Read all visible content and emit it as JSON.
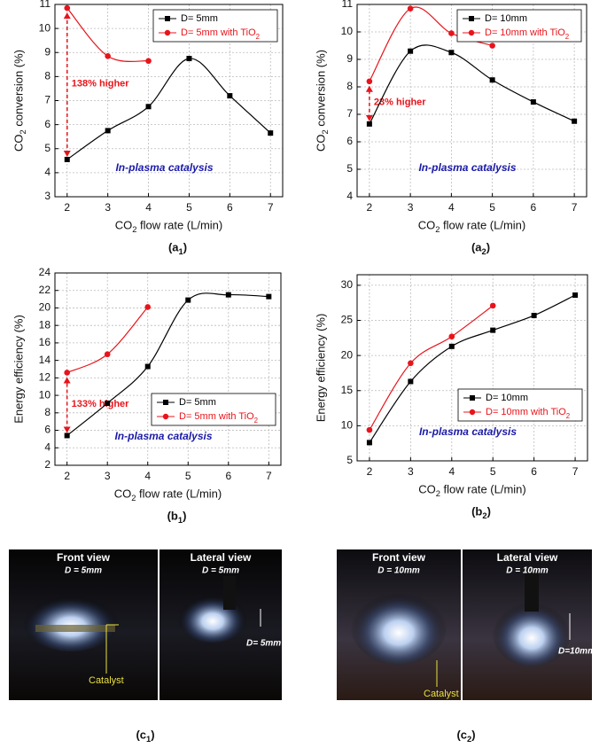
{
  "chart_data": [
    {
      "type": "line",
      "panel": "(a1)",
      "xlabel": "CO2 flow rate (L/min)",
      "ylabel": "CO2 conversion (%)",
      "xlim": [
        1.7,
        7.3
      ],
      "xticks": [
        2,
        3,
        4,
        5,
        6,
        7
      ],
      "ylim": [
        3,
        11
      ],
      "yticks": [
        3,
        4,
        5,
        6,
        7,
        8,
        9,
        10,
        11
      ],
      "grid": true,
      "legend": "upper right",
      "annotations": [
        "138% higher",
        "In-plasma catalysis"
      ],
      "series": [
        {
          "name": "D= 5mm",
          "color": "#000000",
          "marker": "square",
          "x": [
            2,
            3,
            4,
            5,
            6,
            7
          ],
          "values": [
            4.55,
            5.75,
            6.75,
            8.75,
            7.2,
            5.65
          ]
        },
        {
          "name": "D= 5mm with TiO2",
          "color": "#e8141b",
          "marker": "circle",
          "x": [
            2,
            3,
            4
          ],
          "values": [
            10.85,
            8.85,
            8.65
          ]
        }
      ]
    },
    {
      "type": "line",
      "panel": "(a2)",
      "xlabel": "CO2 flow rate (L/min)",
      "ylabel": "CO2 conversion (%)",
      "xlim": [
        1.7,
        7.3
      ],
      "xticks": [
        2,
        3,
        4,
        5,
        6,
        7
      ],
      "ylim": [
        4,
        11
      ],
      "yticks": [
        4,
        5,
        6,
        7,
        8,
        9,
        10,
        11
      ],
      "grid": true,
      "legend": "upper right",
      "annotations": [
        "23% higher",
        "In-plasma catalysis"
      ],
      "series": [
        {
          "name": "D= 10mm",
          "color": "#000000",
          "marker": "square",
          "x": [
            2,
            3,
            4,
            5,
            6,
            7
          ],
          "values": [
            6.65,
            9.3,
            9.25,
            8.25,
            7.45,
            6.75
          ]
        },
        {
          "name": "D= 10mm with TiO2",
          "color": "#e8141b",
          "marker": "circle",
          "x": [
            2,
            3,
            4,
            5
          ],
          "values": [
            8.2,
            10.85,
            9.95,
            9.5
          ]
        }
      ]
    },
    {
      "type": "line",
      "panel": "(b1)",
      "xlabel": "CO2 flow rate (L/min)",
      "ylabel": "Energy efficiency (%)",
      "xlim": [
        1.7,
        7.3
      ],
      "xticks": [
        2,
        3,
        4,
        5,
        6,
        7
      ],
      "ylim": [
        2,
        24
      ],
      "yticks": [
        2,
        4,
        6,
        8,
        10,
        12,
        14,
        16,
        18,
        20,
        22,
        24
      ],
      "grid": true,
      "legend": "lower right",
      "annotations": [
        "133% higher",
        "In-plasma catalysis"
      ],
      "series": [
        {
          "name": "D= 5mm",
          "color": "#000000",
          "marker": "square",
          "x": [
            2,
            3,
            4,
            5,
            6,
            7
          ],
          "values": [
            5.4,
            9.1,
            13.3,
            20.9,
            21.5,
            21.3
          ]
        },
        {
          "name": "D= 5mm with TiO2",
          "color": "#e8141b",
          "marker": "circle",
          "x": [
            2,
            3,
            4
          ],
          "values": [
            12.6,
            14.7,
            20.1
          ]
        }
      ]
    },
    {
      "type": "line",
      "panel": "(b2)",
      "xlabel": "CO2 flow rate (L/min)",
      "ylabel": "Energy efficiency (%)",
      "xlim": [
        1.7,
        7.3
      ],
      "xticks": [
        2,
        3,
        4,
        5,
        6,
        7
      ],
      "ylim": [
        5,
        31.5
      ],
      "yticks": [
        5,
        10,
        15,
        20,
        25,
        30
      ],
      "grid": true,
      "legend": "lower right",
      "annotations": [
        "In-plasma catalysis"
      ],
      "series": [
        {
          "name": "D= 10mm",
          "color": "#000000",
          "marker": "square",
          "x": [
            2,
            3,
            4,
            5,
            6,
            7
          ],
          "values": [
            7.6,
            16.3,
            21.3,
            23.6,
            25.7,
            28.6
          ]
        },
        {
          "name": "D= 10mm with TiO2",
          "color": "#e8141b",
          "marker": "circle",
          "x": [
            2,
            3,
            4,
            5
          ],
          "values": [
            9.4,
            18.9,
            22.7,
            27.1
          ]
        }
      ]
    }
  ],
  "photos": [
    {
      "label": "(c1)",
      "front_title": "Front view",
      "front_d": "D = 5mm",
      "lateral_title": "Lateral view",
      "lateral_d": "D = 5mm",
      "gap": "D= 5mm",
      "catalyst": "Catalyst"
    },
    {
      "label": "(c2)",
      "front_title": "Front view",
      "front_d": "D = 10mm",
      "lateral_title": "Lateral view",
      "lateral_d": "D = 10mm",
      "gap": "D=10mm",
      "catalyst": "Catalyst"
    }
  ]
}
